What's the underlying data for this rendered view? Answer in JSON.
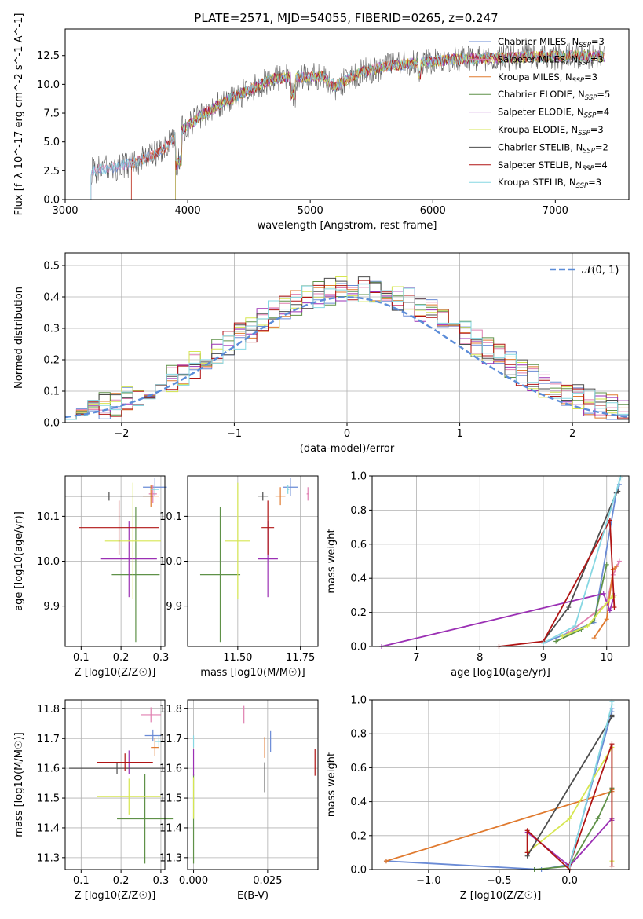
{
  "figure_title": "PLATE=2571, MJD=54055, FIBERID=0265, z=0.247",
  "model_colors": [
    "#6a8bd6",
    "#e07fb0",
    "#e07a2f",
    "#5f9148",
    "#9b30b4",
    "#d6e650",
    "#4d4d4d",
    "#b01414",
    "#86d7e2"
  ],
  "chart_data": [
    {
      "type": "line",
      "panel": "spectrum",
      "title": "PLATE=2571, MJD=54055, FIBERID=0265, z=0.247",
      "xlabel": "wavelength [Angstrom, rest frame]",
      "ylabel": "Flux [f_λ 10^-17 erg cm^-2 s^-1 A^-1]",
      "xlim": [
        3000,
        7600
      ],
      "ylim": [
        0,
        14.8
      ],
      "xticks": [
        "3000",
        "4000",
        "5000",
        "6000",
        "7000"
      ],
      "yticks": [
        "0.0",
        "2.5",
        "5.0",
        "7.5",
        "10.0",
        "12.5"
      ],
      "legend_location": "upper-right",
      "continuum": {
        "x": [
          3210,
          3400,
          3600,
          3800,
          3950,
          4100,
          4300,
          4500,
          4700,
          4900,
          5100,
          5200,
          5400,
          5600,
          5800,
          6000,
          6200,
          6500,
          6800,
          7000,
          7200,
          7400
        ],
        "y": [
          2.5,
          2.8,
          3.3,
          4.3,
          6.0,
          7.2,
          8.5,
          9.5,
          10.5,
          10.6,
          10.7,
          9.8,
          11.0,
          11.5,
          11.8,
          12.0,
          12.2,
          12.3,
          12.4,
          12.4,
          12.5,
          12.4
        ]
      },
      "series": [
        {
          "name": "Chabrier MILES, N_SSP=3",
          "start": 3210
        },
        {
          "name": "Salpeter MILES, N_SSP=3",
          "start": 3210
        },
        {
          "name": "Kroupa MILES, N_SSP=3",
          "start": 3540
        },
        {
          "name": "Chabrier ELODIE, N_SSP=5",
          "start": 3900
        },
        {
          "name": "Salpeter ELODIE, N_SSP=4",
          "start": 3900
        },
        {
          "name": "Kroupa ELODIE, N_SSP=3",
          "start": 3900
        },
        {
          "name": "Chabrier STELIB, N_SSP=2",
          "start": 3210
        },
        {
          "name": "Salpeter STELIB, N_SSP=4",
          "start": 3540
        },
        {
          "name": "Kroupa STELIB, N_SSP=3",
          "start": 3210
        }
      ]
    },
    {
      "type": "histogram",
      "panel": "residuals",
      "xlabel": "(data-model)/error",
      "ylabel": "Normed distribution",
      "xlim": [
        -2.5,
        2.5
      ],
      "ylim": [
        0,
        0.54
      ],
      "xticks": [
        "−2",
        "−1",
        "0",
        "1",
        "2"
      ],
      "yticks": [
        "0.0",
        "0.1",
        "0.2",
        "0.3",
        "0.4",
        "0.5"
      ],
      "bin_width": 0.1,
      "reference_curve": {
        "name": "𝒩(0, 1)",
        "mean": 0,
        "sigma": 1
      },
      "legend_location": "upper-right",
      "grid": true
    },
    {
      "type": "errorbar",
      "panel": "age-vs-Z",
      "xlabel": "Z [log10(Z/Z☉)]",
      "ylabel": "age [log10(age/yr)]",
      "xlim": [
        0.06,
        0.31
      ],
      "ylim": [
        9.81,
        10.19
      ],
      "xticks": [
        "0.1",
        "0.2",
        "0.3"
      ],
      "yticks": [
        "9.9",
        "10.0",
        "10.1"
      ],
      "points": [
        {
          "x": 0.285,
          "xerr": 0.03,
          "y": 10.165,
          "yerr": 0.02
        },
        {
          "x": 0.28,
          "xerr": 0.01,
          "y": 10.15,
          "yerr": 0.02
        },
        {
          "x": 0.275,
          "xerr": 0.02,
          "y": 10.145,
          "yerr": 0.025
        },
        {
          "x": 0.237,
          "xerr": 0.06,
          "y": 9.97,
          "yerr": 0.15
        },
        {
          "x": 0.22,
          "xerr": 0.07,
          "y": 10.005,
          "yerr": 0.085
        },
        {
          "x": 0.23,
          "xerr": 0.07,
          "y": 10.045,
          "yerr": 0.13
        },
        {
          "x": 0.17,
          "xerr": 0.11,
          "y": 10.145,
          "yerr": 0.01
        },
        {
          "x": 0.195,
          "xerr": 0.1,
          "y": 10.075,
          "yerr": 0.06
        },
        {
          "x": 0.285,
          "xerr": 0.01,
          "y": 10.16,
          "yerr": 0.01
        }
      ]
    },
    {
      "type": "errorbar",
      "panel": "age-vs-mass",
      "xlabel": "mass [log10(M/M☉)]",
      "ylabel": "",
      "xlim": [
        11.3,
        11.82
      ],
      "ylim": [
        9.81,
        10.19
      ],
      "xticks": [
        "11.50",
        "11.75"
      ],
      "yticks": [
        "9.9",
        "10.0",
        "10.1"
      ],
      "points": [
        {
          "x": 11.71,
          "xerr": 0.03,
          "y": 10.165,
          "yerr": 0.02
        },
        {
          "x": 11.78,
          "xerr": 0.005,
          "y": 10.15,
          "yerr": 0.015
        },
        {
          "x": 11.67,
          "xerr": 0.02,
          "y": 10.145,
          "yerr": 0.02
        },
        {
          "x": 11.43,
          "xerr": 0.08,
          "y": 9.97,
          "yerr": 0.15
        },
        {
          "x": 11.62,
          "xerr": 0.04,
          "y": 10.005,
          "yerr": 0.085
        },
        {
          "x": 11.5,
          "xerr": 0.05,
          "y": 10.045,
          "yerr": 0.13
        },
        {
          "x": 11.6,
          "xerr": 0.02,
          "y": 10.145,
          "yerr": 0.01
        },
        {
          "x": 11.62,
          "xerr": 0.025,
          "y": 10.075,
          "yerr": 0.06
        },
        {
          "x": 11.7,
          "xerr": 0.005,
          "y": 10.16,
          "yerr": 0.01
        }
      ]
    },
    {
      "type": "line",
      "panel": "mass-weight-vs-age",
      "xlabel": "age [log10(age/yr)]",
      "ylabel": "mass weight",
      "xlim": [
        6.3,
        10.35
      ],
      "ylim": [
        0,
        1.0
      ],
      "xticks": [
        "7",
        "8",
        "9",
        "10"
      ],
      "yticks": [
        "0.0",
        "0.2",
        "0.4",
        "0.6",
        "0.8",
        "1.0"
      ],
      "series": [
        {
          "x": [
            9.0,
            9.8,
            10.15,
            10.2
          ],
          "y": [
            0.02,
            0.14,
            0.9,
            0.95
          ]
        },
        {
          "x": [
            9.4,
            10.0,
            10.1,
            10.2
          ],
          "y": [
            0.08,
            0.25,
            0.42,
            0.5
          ]
        },
        {
          "x": [
            9.8,
            10.0,
            10.1,
            10.15
          ],
          "y": [
            0.05,
            0.16,
            0.45,
            0.47
          ]
        },
        {
          "x": [
            9.2,
            9.6,
            9.8,
            10.0
          ],
          "y": [
            0.03,
            0.1,
            0.15,
            0.48
          ]
        },
        {
          "x": [
            6.45,
            9.95,
            10.05,
            10.12
          ],
          "y": [
            0.0,
            0.31,
            0.21,
            0.3
          ]
        },
        {
          "x": [
            9.3,
            9.7,
            10.1,
            10.1
          ],
          "y": [
            0.06,
            0.12,
            0.3,
            0.29
          ]
        },
        {
          "x": [
            9.0,
            9.4,
            10.15,
            10.18
          ],
          "y": [
            0.03,
            0.23,
            0.9,
            0.91
          ]
        },
        {
          "x": [
            8.3,
            9.0,
            10.05,
            10.12
          ],
          "y": [
            0.0,
            0.03,
            0.74,
            0.23
          ]
        },
        {
          "x": [
            9.0,
            9.5,
            10.2,
            10.22
          ],
          "y": [
            0.02,
            0.12,
            0.97,
            0.99
          ]
        }
      ]
    },
    {
      "type": "errorbar",
      "panel": "mass-vs-Z",
      "xlabel": "Z [log10(Z/Z☉)]",
      "ylabel": "mass [log10(M/M☉)]",
      "xlim": [
        0.06,
        0.31
      ],
      "ylim": [
        11.26,
        11.83
      ],
      "xticks": [
        "0.1",
        "0.2",
        "0.3"
      ],
      "yticks": [
        "11.3",
        "11.4",
        "11.5",
        "11.6",
        "11.7",
        "11.8"
      ],
      "points": [
        {
          "x": 0.28,
          "xerr": 0.02,
          "y": 11.71,
          "yerr": 0.02
        },
        {
          "x": 0.275,
          "xerr": 0.025,
          "y": 11.78,
          "yerr": 0.025
        },
        {
          "x": 0.285,
          "xerr": 0.01,
          "y": 11.67,
          "yerr": 0.03
        },
        {
          "x": 0.26,
          "xerr": 0.07,
          "y": 11.43,
          "yerr": 0.15
        },
        {
          "x": 0.22,
          "xerr": 0.04,
          "y": 11.62,
          "yerr": 0.04
        },
        {
          "x": 0.22,
          "xerr": 0.08,
          "y": 11.505,
          "yerr": 0.06
        },
        {
          "x": 0.19,
          "xerr": 0.12,
          "y": 11.6,
          "yerr": 0.02
        },
        {
          "x": 0.21,
          "xerr": 0.07,
          "y": 11.62,
          "yerr": 0.03
        },
        {
          "x": 0.295,
          "xerr": 0.01,
          "y": 11.69,
          "yerr": 0.02
        }
      ]
    },
    {
      "type": "errorbar",
      "panel": "mass-vs-EBV",
      "xlabel": "E(B-V)",
      "ylabel": "",
      "xlim": [
        -0.002,
        0.042
      ],
      "ylim": [
        11.26,
        11.83
      ],
      "xticks": [
        "0.000",
        "0.025"
      ],
      "yticks": [
        "11.3",
        "11.4",
        "11.5",
        "11.6",
        "11.7",
        "11.8"
      ],
      "points": [
        {
          "x": 0.026,
          "y": 11.69,
          "yerr": 0.035
        },
        {
          "x": 0.017,
          "y": 11.78,
          "yerr": 0.03
        },
        {
          "x": 0.024,
          "y": 11.67,
          "yerr": 0.035
        },
        {
          "x": 0.0,
          "y": 11.43,
          "yerr": 0.15
        },
        {
          "x": 0.0,
          "y": 11.62,
          "yerr": 0.045
        },
        {
          "x": 0.0,
          "y": 11.5,
          "yerr": 0.07
        },
        {
          "x": 0.024,
          "y": 11.57,
          "yerr": 0.05
        },
        {
          "x": 0.041,
          "y": 11.62,
          "yerr": 0.045
        },
        {
          "x": 0.0,
          "y": 11.69,
          "yerr": 0.02
        }
      ]
    },
    {
      "type": "line",
      "panel": "mass-weight-vs-Z",
      "xlabel": "Z [log10(Z/Z☉)]",
      "ylabel": "mass weight",
      "xlim": [
        -1.4,
        0.42
      ],
      "ylim": [
        0,
        1.0
      ],
      "xticks": [
        "−1.0",
        "−0.5",
        "0.0"
      ],
      "yticks": [
        "0.0",
        "0.2",
        "0.4",
        "0.6",
        "0.8",
        "1.0"
      ],
      "series": [
        {
          "x": [
            -1.3,
            -0.2,
            0.0,
            0.3,
            0.3
          ],
          "y": [
            0.05,
            0.0,
            0.03,
            0.93,
            0.95
          ]
        },
        {
          "x": [
            0.3,
            0.3
          ],
          "y": [
            0.46,
            0.48
          ]
        },
        {
          "x": [
            -1.3,
            0.3,
            0.3
          ],
          "y": [
            0.05,
            0.46,
            0.47
          ]
        },
        {
          "x": [
            -0.25,
            0.0,
            0.2,
            0.3
          ],
          "y": [
            0.0,
            0.02,
            0.3,
            0.48
          ]
        },
        {
          "x": [
            -0.3,
            0.0,
            0.3,
            0.3
          ],
          "y": [
            0.22,
            0.02,
            0.3,
            0.29
          ]
        },
        {
          "x": [
            -0.3,
            0.0,
            0.3,
            0.3
          ],
          "y": [
            0.1,
            0.3,
            0.72,
            0.05
          ]
        },
        {
          "x": [
            -0.3,
            0.3,
            0.3
          ],
          "y": [
            0.08,
            0.9,
            0.91
          ]
        },
        {
          "x": [
            -0.3,
            -0.3,
            0.0,
            0.0,
            0.3,
            0.3
          ],
          "y": [
            0.1,
            0.23,
            0.0,
            0.03,
            0.74,
            0.02
          ]
        },
        {
          "x": [
            0.0,
            0.3,
            0.3
          ],
          "y": [
            0.02,
            0.97,
            0.99
          ]
        }
      ]
    }
  ]
}
